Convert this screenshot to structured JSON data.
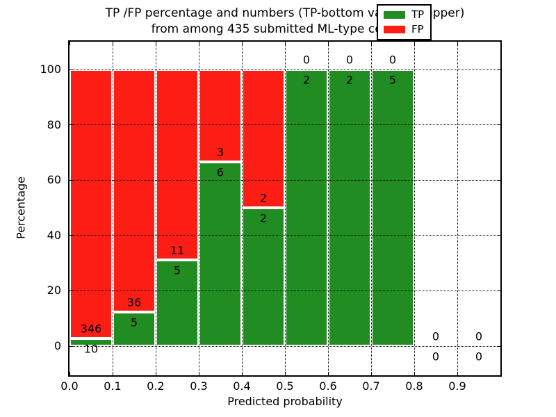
{
  "title": {
    "line1": "TP /FP percentage and numbers (TP-bottom value, FP-upper)",
    "line2": "from among 435 submitted ML-type contacts"
  },
  "chart_data": {
    "type": "bar",
    "stacked": true,
    "title": "TP /FP percentage and numbers (TP-bottom value, FP-upper)\nfrom among 435 submitted ML-type contacts",
    "xlabel": "Predicted probability",
    "ylabel": "Percentage",
    "xlim": [
      0.0,
      1.0
    ],
    "ylim": [
      -10.5,
      110
    ],
    "xtick_labels": [
      "0.0",
      "0.1",
      "0.2",
      "0.3",
      "0.4",
      "0.5",
      "0.6",
      "0.7",
      "0.8",
      "0.9"
    ],
    "xtick_values": [
      0.0,
      0.1,
      0.2,
      0.3,
      0.4,
      0.5,
      0.6,
      0.7,
      0.8,
      0.9
    ],
    "ytick_labels": [
      "0",
      "20",
      "40",
      "60",
      "80",
      "100"
    ],
    "ytick_values": [
      0,
      20,
      40,
      60,
      80,
      100
    ],
    "grid": "dotted",
    "bar_edge_color": "#ffffff",
    "categories": [
      "0.0-0.1",
      "0.1-0.2",
      "0.2-0.3",
      "0.3-0.4",
      "0.4-0.5",
      "0.5-0.6",
      "0.6-0.7",
      "0.7-0.8",
      "0.8-0.9",
      "0.9-1.0"
    ],
    "series": [
      {
        "name": "TP",
        "color": "#208c21",
        "counts": [
          10,
          5,
          5,
          6,
          2,
          2,
          2,
          5,
          0,
          0
        ]
      },
      {
        "name": "FP",
        "color": "#fc1e14",
        "counts": [
          346,
          36,
          11,
          3,
          2,
          0,
          0,
          0,
          0,
          0
        ]
      }
    ],
    "tp_percent": [
      2.81,
      12.2,
      31.25,
      66.67,
      50.0,
      100.0,
      100.0,
      100.0,
      0,
      0
    ],
    "legend": {
      "position": "upper-right",
      "entries": [
        {
          "label": "TP",
          "color": "#208c21"
        },
        {
          "label": "FP",
          "color": "#fc1e14"
        }
      ]
    }
  }
}
